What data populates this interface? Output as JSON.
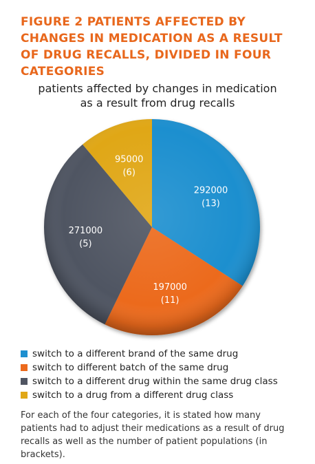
{
  "figure": {
    "title": "FIGURE 2 PATIENTS AFFECTED BY CHANGES IN MEDICATION AS A RESULT OF DRUG RECALLS, DIVIDED IN FOUR CATEGORIES",
    "note": "For each of the four categories, it is stated how many patients had to adjust their medications as a result of drug recalls as well as the number of patient populations (in brackets)."
  },
  "chart_data": {
    "type": "pie",
    "title_lines": [
      "patients affected by changes in medication",
      "as a result from drug recalls"
    ],
    "legend_placement": "bottom",
    "slices": [
      {
        "label": "switch to a different brand of the same drug",
        "value": 292000,
        "value_label": "292000",
        "count_label": "(13)",
        "color": "#1e8fcf"
      },
      {
        "label": "switch to different batch of the same drug",
        "value": 197000,
        "value_label": "197000",
        "count_label": "(11)",
        "color": "#ec6a1c"
      },
      {
        "label": "switch to a different drug within the same drug class",
        "value": 271000,
        "value_label": "271000",
        "count_label": "(5)",
        "color": "#505562"
      },
      {
        "label": "switch to a drug from a different drug class",
        "value": 95000,
        "value_label": "95000",
        "count_label": "(6)",
        "color": "#e0a717"
      }
    ]
  }
}
